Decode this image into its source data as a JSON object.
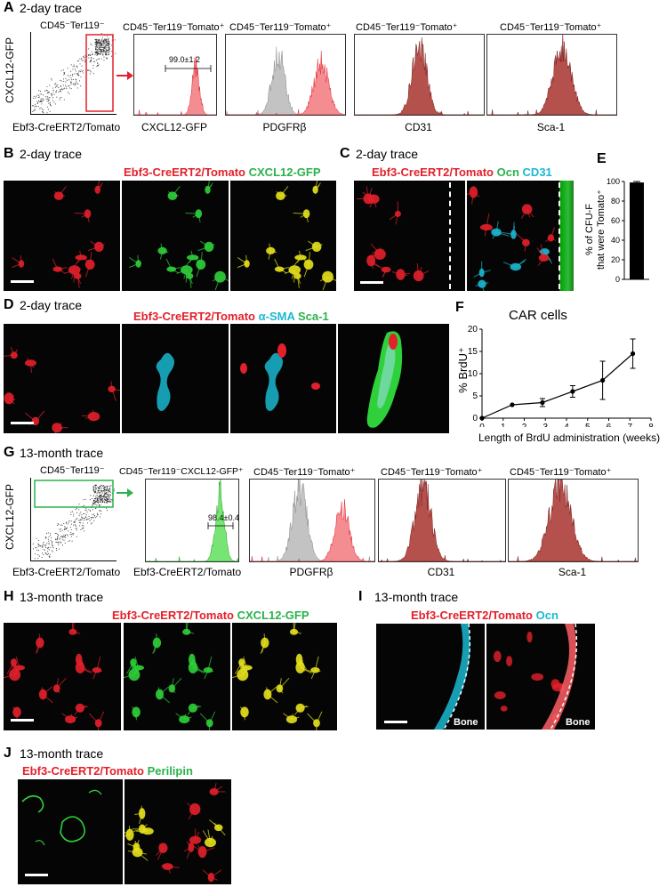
{
  "panels": {
    "A": {
      "label": "A",
      "title": "2-day trace",
      "gate_title": "CD45⁻Ter119⁻",
      "hist_titles": [
        "CD45⁻Ter119⁻Tomato⁺",
        "CD45⁻Ter119⁻Tomato⁺",
        "CD45⁻Ter119⁻Tomato⁺",
        "CD45⁻Ter119⁻Tomato⁺"
      ],
      "yaxis": "CXCL12-GFP",
      "xaxis": "Ebf3-CreERT2/Tomato",
      "hist_xaxes": [
        "CXCL12-GFP",
        "PDGFRβ",
        "CD31",
        "Sca-1"
      ],
      "gate_value": "99.0±1.2"
    },
    "B": {
      "label": "B",
      "title": "2-day trace",
      "hdr_red": "Ebf3-CreERT2/Tomato",
      "hdr_green": "CXCL12-GFP"
    },
    "C": {
      "label": "C",
      "title": "2-day trace",
      "hdr_red": "Ebf3-CreERT2/Tomato",
      "hdr_green": "Ocn",
      "hdr_cyan": "CD31"
    },
    "D": {
      "label": "D",
      "title": "2-day trace",
      "hdr_red": "Ebf3-CreERT2/Tomato",
      "hdr_cyan": "α-SMA",
      "hdr_green": "Sca-1"
    },
    "E": {
      "label": "E",
      "ylabel_line1": "% of CFU-F",
      "ylabel_line2": "that were Tomato⁺",
      "value": 99,
      "error": 1
    },
    "F": {
      "label": "F",
      "title": "CAR cells",
      "ylabel": "% BrdU⁺",
      "xlabel": "Length of BrdU administration (weeks)"
    },
    "G": {
      "label": "G",
      "title": "13-month trace",
      "gate_title": "CD45⁻Ter119⁻",
      "hist_titles": [
        "CD45⁻Ter119⁻CXCL12-GFP⁺",
        "CD45⁻Ter119⁻Tomato⁺",
        "CD45⁻Ter119⁻Tomato⁺",
        "CD45⁻Ter119⁻Tomato⁺"
      ],
      "yaxis": "CXCL12-GFP",
      "xaxis": "Ebf3-CreERT2/Tomato",
      "hist_xaxes": [
        "Ebf3-CreERT2/Tomato",
        "PDGFRβ",
        "CD31",
        "Sca-1"
      ],
      "gate_value": "98.4±0.4"
    },
    "H": {
      "label": "H",
      "title": "13-month trace",
      "hdr_red": "Ebf3-CreERT2/Tomato",
      "hdr_green": "CXCL12-GFP"
    },
    "I": {
      "label": "I",
      "title": "13-month trace",
      "hdr_red": "Ebf3-CreERT2/Tomato",
      "hdr_cyan": "Ocn",
      "bone": "Bone"
    },
    "J": {
      "label": "J",
      "title": "13-month trace",
      "hdr_red": "Ebf3-CreERT2/Tomato",
      "hdr_green": "Perilipin"
    }
  },
  "colors": {
    "red": "#e3202b",
    "green": "#2bb24c",
    "cyan": "#1bb9d1",
    "gray": "#9a9a9a"
  },
  "chart_data": [
    {
      "type": "bar",
      "panel": "E",
      "categories": [
        ""
      ],
      "values": [
        99
      ],
      "error": [
        1
      ],
      "ylim": [
        0,
        100
      ],
      "yticks": [
        0,
        20,
        40,
        60,
        80,
        100
      ],
      "ylabel": "% of CFU-F that were Tomato⁺"
    },
    {
      "type": "line",
      "panel": "F",
      "title": "CAR cells",
      "x": [
        0,
        1.43,
        2.86,
        4.29,
        5.71,
        7.14
      ],
      "y": [
        0,
        3.0,
        3.5,
        6.0,
        8.5,
        14.5
      ],
      "err": [
        0,
        0,
        0.9,
        1.3,
        4.3,
        3.3
      ],
      "xlim": [
        0,
        8
      ],
      "ylim": [
        0,
        20
      ],
      "xticks": [
        0,
        1,
        2,
        3,
        4,
        5,
        6,
        7,
        8
      ],
      "yticks": [
        0,
        5,
        10,
        15,
        20
      ],
      "xlabel": "Length of BrdU administration (weeks)",
      "ylabel": "% BrdU⁺"
    }
  ]
}
